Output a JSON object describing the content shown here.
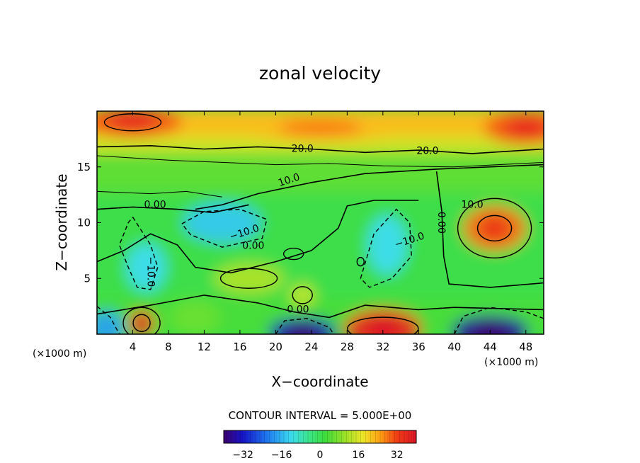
{
  "chart_data": {
    "type": "heatmap",
    "title": "zonal velocity",
    "xlabel": "X−coordinate",
    "ylabel": "Z−coordinate",
    "x_unit": "(×1000 m)",
    "y_unit": "(×1000 m)",
    "xlim": [
      0,
      50
    ],
    "ylim": [
      0,
      20
    ],
    "x_ticks": [
      4,
      8,
      12,
      16,
      20,
      24,
      28,
      32,
      36,
      40,
      44,
      48
    ],
    "y_ticks": [
      5,
      10,
      15
    ],
    "colorbar": {
      "range": [
        -40,
        40
      ],
      "ticks": [
        -32,
        -16,
        0,
        16,
        32
      ],
      "tick_labels": [
        "−32",
        "−16",
        "0",
        "16",
        "32"
      ]
    },
    "contour_interval_text": "CONTOUR INTERVAL = 5.000E+00",
    "contour_labels": [
      {
        "text": "20.0",
        "x": 23,
        "z": 16.6
      },
      {
        "text": "20.0",
        "x": 37,
        "z": 16.4
      },
      {
        "text": "10.0",
        "x": 21.5,
        "z": 13.8
      },
      {
        "text": "10.0",
        "x": 42,
        "z": 11.6
      },
      {
        "text": "0.00",
        "x": 6.5,
        "z": 11.6
      },
      {
        "text": "−10.0",
        "x": 16.5,
        "z": 9.1
      },
      {
        "text": "0.00",
        "x": 17.5,
        "z": 7.9
      },
      {
        "text": "−10.0",
        "x": 35,
        "z": 8.4
      },
      {
        "text": "0.00",
        "x": 38.5,
        "z": 10.0
      },
      {
        "text": "−10.0",
        "x": 6,
        "z": 5.6
      },
      {
        "text": "0.00",
        "x": 22.5,
        "z": 2.2
      }
    ],
    "features": [
      {
        "x": 4,
        "z": 19,
        "value": 30
      },
      {
        "x": 25,
        "z": 18.5,
        "value": 22
      },
      {
        "x": 48,
        "z": 18.5,
        "value": 30
      },
      {
        "x": 5,
        "z": 1,
        "value": 34
      },
      {
        "x": 32,
        "z": 0.5,
        "value": 34
      },
      {
        "x": 44.5,
        "z": 9.5,
        "value": 28
      },
      {
        "x": 14,
        "z": 10,
        "value": -14
      },
      {
        "x": 5.5,
        "z": 6,
        "value": -12
      },
      {
        "x": 32.5,
        "z": 8,
        "value": -12
      },
      {
        "x": 23,
        "z": 0.2,
        "value": -34
      },
      {
        "x": 44,
        "z": 0.3,
        "value": -36
      },
      {
        "x": 1,
        "z": 0.5,
        "value": -18
      },
      {
        "x": 11,
        "z": 1.5,
        "value": 6
      },
      {
        "x": 17,
        "z": 5,
        "value": 12
      },
      {
        "x": 23,
        "z": 3.5,
        "value": 14
      }
    ]
  }
}
